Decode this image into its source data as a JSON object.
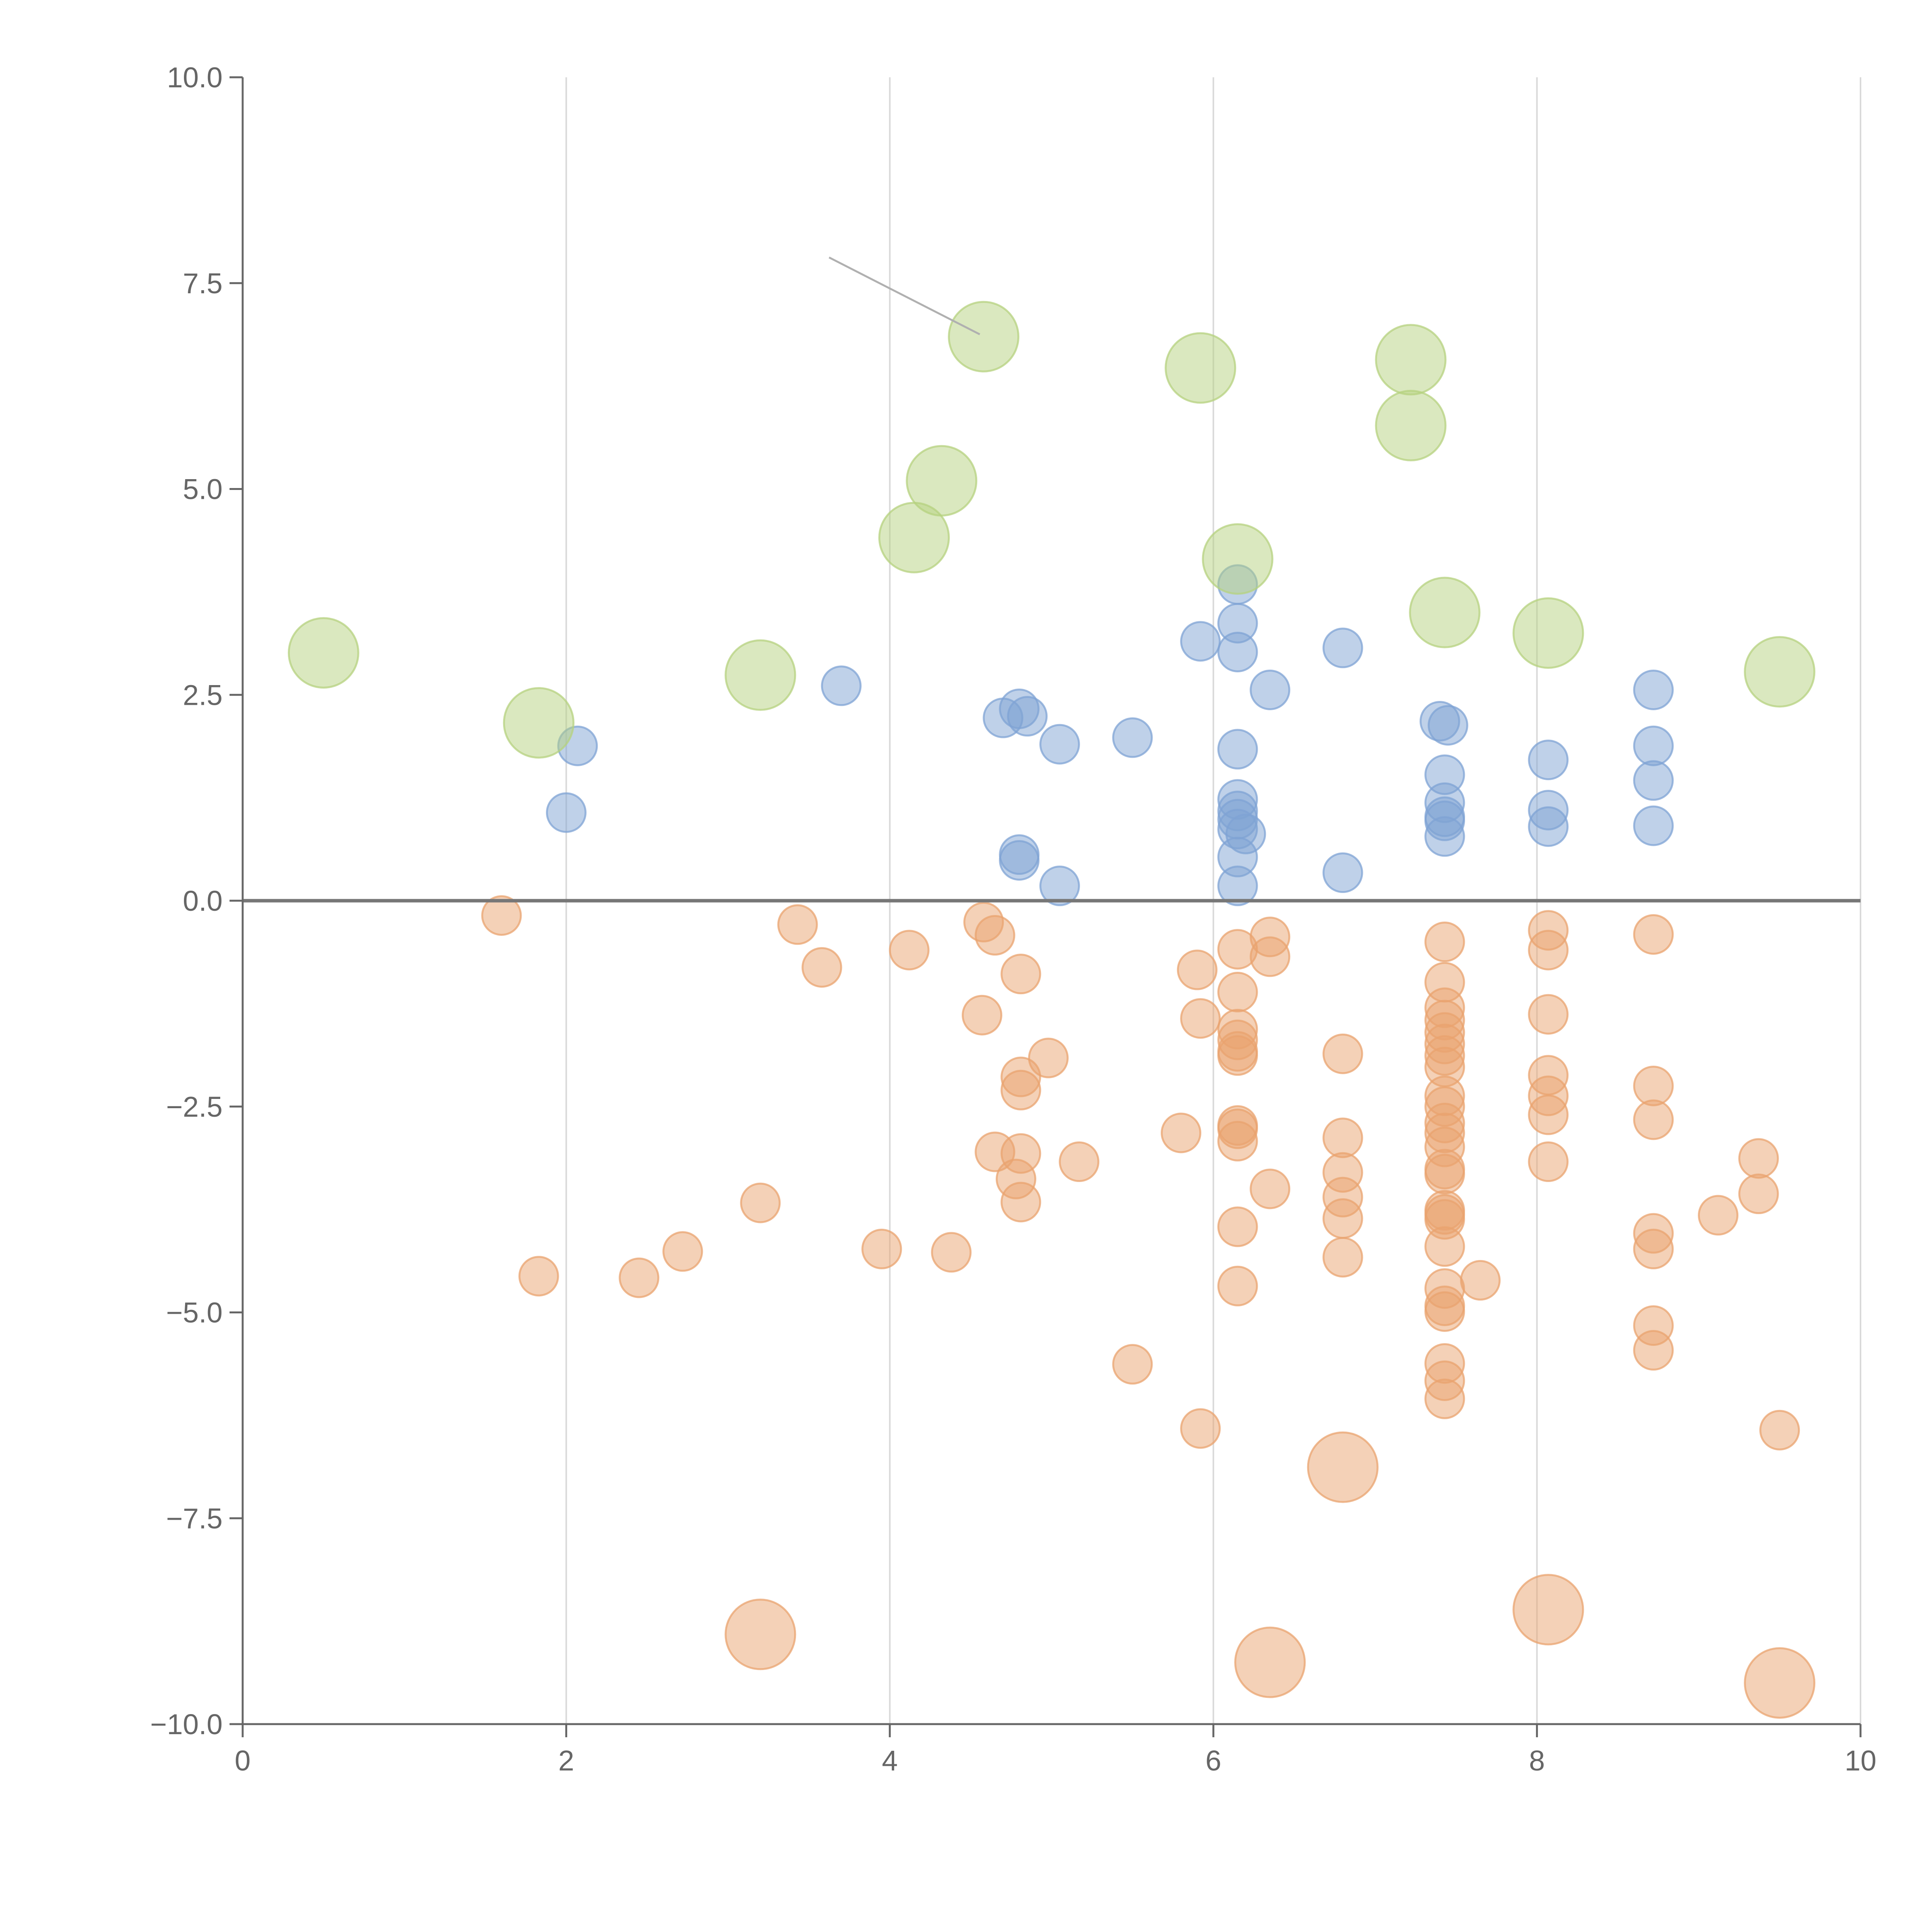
{
  "chart_data": {
    "type": "scatter",
    "title": "",
    "xlabel": "",
    "ylabel": "",
    "xlim": [
      0,
      10
    ],
    "ylim": [
      -10,
      10
    ],
    "x_ticks": [
      0,
      2,
      4,
      6,
      8,
      10
    ],
    "x_tick_labels": [
      "0",
      "2",
      "4",
      "6",
      "8",
      "10"
    ],
    "y_ticks": [
      10,
      7.5,
      5,
      2.5,
      0,
      -2.5,
      -5,
      -7.5,
      -10
    ],
    "y_tick_labels": [
      "10.0",
      "7.5",
      "5.0",
      "2.5",
      "0.0",
      "−2.5",
      "−5.0",
      "−7.5",
      "−10.0"
    ],
    "grid": "vertical",
    "legend": "none",
    "zero_line": true,
    "colors": {
      "positive": "#7fa3d4",
      "negative": "#e9a36f",
      "highlight": "#b5d17f"
    },
    "series": [
      {
        "name": "positive",
        "color": "#7fa3d4",
        "size": 1,
        "points": [
          [
            2.0,
            1.07
          ],
          [
            2.07,
            1.88
          ],
          [
            3.7,
            2.61
          ],
          [
            4.7,
            2.22
          ],
          [
            4.8,
            2.33
          ],
          [
            4.85,
            2.24
          ],
          [
            5.05,
            1.9
          ],
          [
            5.5,
            1.98
          ],
          [
            4.8,
            0.56
          ],
          [
            4.8,
            0.49
          ],
          [
            5.05,
            0.18
          ],
          [
            5.92,
            3.15
          ],
          [
            6.15,
            3.84
          ],
          [
            6.15,
            3.37
          ],
          [
            6.15,
            3.02
          ],
          [
            6.35,
            2.56
          ],
          [
            6.15,
            1.84
          ],
          [
            6.15,
            1.23
          ],
          [
            6.15,
            1.09
          ],
          [
            6.15,
            0.99
          ],
          [
            6.15,
            0.87
          ],
          [
            6.2,
            0.81
          ],
          [
            6.15,
            0.53
          ],
          [
            6.15,
            0.18
          ],
          [
            6.8,
            3.07
          ],
          [
            6.8,
            0.34
          ],
          [
            7.4,
            2.18
          ],
          [
            7.45,
            2.13
          ],
          [
            7.43,
            1.53
          ],
          [
            7.43,
            1.19
          ],
          [
            7.43,
            1.02
          ],
          [
            7.43,
            0.97
          ],
          [
            7.43,
            0.78
          ],
          [
            8.07,
            1.71
          ],
          [
            8.07,
            1.1
          ],
          [
            8.07,
            0.9
          ],
          [
            8.72,
            2.56
          ],
          [
            8.72,
            1.88
          ],
          [
            8.72,
            1.46
          ],
          [
            8.72,
            0.91
          ]
        ]
      },
      {
        "name": "negative",
        "color": "#e9a36f",
        "size": 1,
        "points": [
          [
            1.6,
            -0.18
          ],
          [
            3.43,
            -0.29
          ],
          [
            3.58,
            -0.81
          ],
          [
            4.12,
            -0.6
          ],
          [
            4.58,
            -0.26
          ],
          [
            4.65,
            -0.42
          ],
          [
            4.81,
            -0.89
          ],
          [
            4.57,
            -1.39
          ],
          [
            4.98,
            -1.91
          ],
          [
            4.81,
            -2.14
          ],
          [
            4.81,
            -2.3
          ],
          [
            4.65,
            -3.05
          ],
          [
            4.81,
            -3.07
          ],
          [
            4.78,
            -3.38
          ],
          [
            4.81,
            -3.66
          ],
          [
            5.17,
            -3.17
          ],
          [
            3.2,
            -3.67
          ],
          [
            3.95,
            -4.23
          ],
          [
            4.38,
            -4.27
          ],
          [
            2.72,
            -4.26
          ],
          [
            2.45,
            -4.58
          ],
          [
            1.83,
            -4.56
          ],
          [
            5.5,
            -5.63
          ],
          [
            5.92,
            -6.41
          ],
          [
            5.9,
            -0.84
          ],
          [
            5.92,
            -1.43
          ],
          [
            5.8,
            -2.82
          ],
          [
            6.15,
            -0.59
          ],
          [
            6.35,
            -0.44
          ],
          [
            6.35,
            -0.68
          ],
          [
            6.15,
            -1.11
          ],
          [
            6.15,
            -1.56
          ],
          [
            6.15,
            -1.69
          ],
          [
            6.15,
            -1.83
          ],
          [
            6.15,
            -1.88
          ],
          [
            6.15,
            -2.73
          ],
          [
            6.15,
            -2.77
          ],
          [
            6.15,
            -2.92
          ],
          [
            6.15,
            -3.96
          ],
          [
            6.35,
            -3.5
          ],
          [
            6.15,
            -4.68
          ],
          [
            6.8,
            -1.86
          ],
          [
            6.8,
            -2.88
          ],
          [
            6.8,
            -3.3
          ],
          [
            6.8,
            -3.6
          ],
          [
            6.8,
            -3.86
          ],
          [
            6.8,
            -4.33
          ],
          [
            7.43,
            -0.5
          ],
          [
            7.43,
            -0.99
          ],
          [
            7.43,
            -1.3
          ],
          [
            7.43,
            -1.45
          ],
          [
            7.43,
            -1.6
          ],
          [
            7.43,
            -1.74
          ],
          [
            7.43,
            -1.88
          ],
          [
            7.43,
            -2.02
          ],
          [
            7.43,
            -2.37
          ],
          [
            7.43,
            -2.5
          ],
          [
            7.43,
            -2.7
          ],
          [
            7.43,
            -2.82
          ],
          [
            7.43,
            -2.99
          ],
          [
            7.43,
            -3.26
          ],
          [
            7.43,
            -3.32
          ],
          [
            7.43,
            -3.76
          ],
          [
            7.43,
            -3.81
          ],
          [
            7.43,
            -3.87
          ],
          [
            7.43,
            -4.2
          ],
          [
            7.43,
            -4.71
          ],
          [
            7.43,
            -4.92
          ],
          [
            7.43,
            -4.99
          ],
          [
            7.43,
            -5.62
          ],
          [
            7.43,
            -5.83
          ],
          [
            7.43,
            -6.05
          ],
          [
            7.65,
            -4.61
          ],
          [
            8.07,
            -0.36
          ],
          [
            8.07,
            -0.6
          ],
          [
            8.07,
            -1.38
          ],
          [
            8.07,
            -2.12
          ],
          [
            8.07,
            -2.37
          ],
          [
            8.07,
            -2.6
          ],
          [
            8.07,
            -3.17
          ],
          [
            8.72,
            -0.41
          ],
          [
            8.72,
            -2.25
          ],
          [
            8.72,
            -2.66
          ],
          [
            8.72,
            -4.04
          ],
          [
            8.72,
            -4.23
          ],
          [
            8.72,
            -5.16
          ],
          [
            8.72,
            -5.46
          ],
          [
            9.12,
            -3.82
          ],
          [
            9.37,
            -3.13
          ],
          [
            9.37,
            -3.56
          ],
          [
            9.5,
            -6.43
          ]
        ]
      },
      {
        "name": "highlight-positive",
        "color": "#b5d17f",
        "size": 2,
        "points": [
          [
            0.5,
            3.01
          ],
          [
            1.83,
            2.16
          ],
          [
            3.2,
            2.74
          ],
          [
            4.15,
            4.41
          ],
          [
            4.32,
            5.1
          ],
          [
            4.58,
            6.85
          ],
          [
            5.92,
            6.47
          ],
          [
            6.15,
            4.15
          ],
          [
            7.22,
            6.57
          ],
          [
            7.22,
            5.77
          ],
          [
            7.43,
            3.5
          ],
          [
            8.07,
            3.25
          ],
          [
            9.5,
            2.78
          ]
        ]
      },
      {
        "name": "highlight-negative",
        "color": "#e9a36f",
        "size": 2,
        "points": [
          [
            3.2,
            -8.91
          ],
          [
            6.35,
            -9.25
          ],
          [
            6.8,
            -6.88
          ],
          [
            8.07,
            -8.61
          ],
          [
            9.5,
            -9.5
          ]
        ]
      }
    ]
  }
}
